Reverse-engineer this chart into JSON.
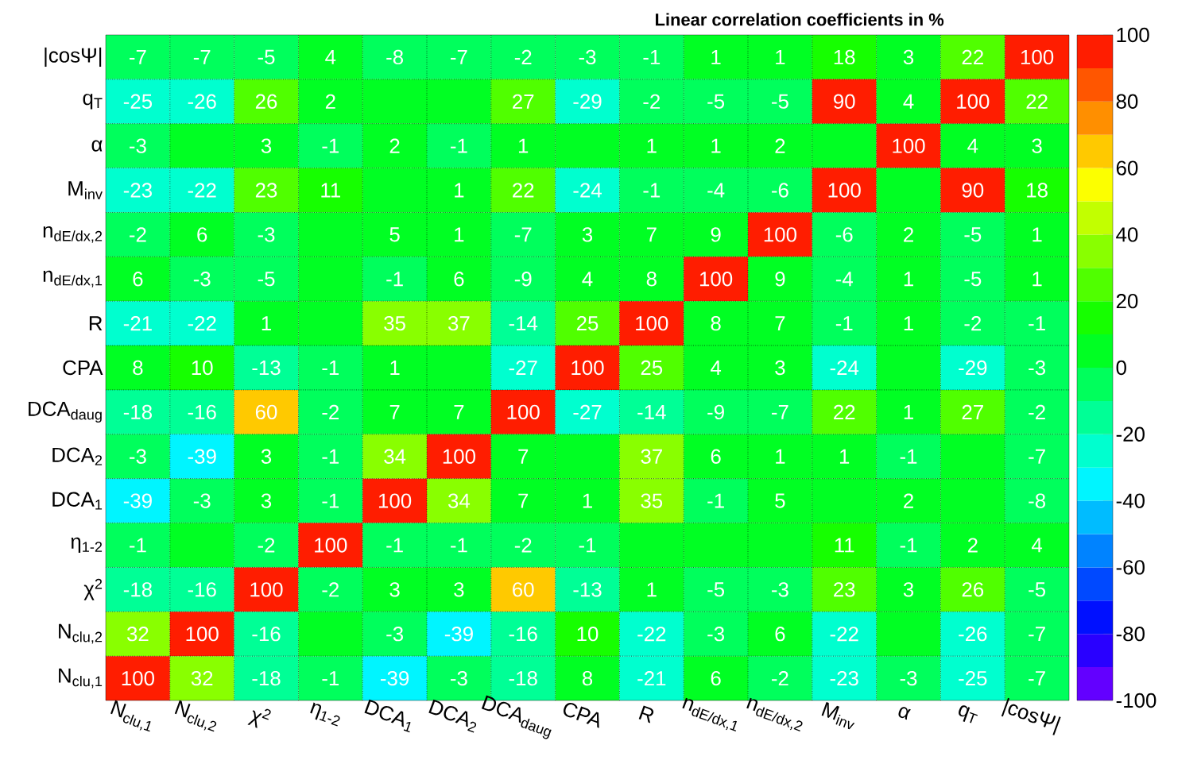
{
  "chart_data": {
    "type": "heatmap",
    "title": "Linear correlation coefficients in %",
    "categories": [
      "N$_{clu,1}$",
      "N$_{clu,2}$",
      "χ$^{2}$",
      "η$_{1-2}$",
      "DCA$_{1}$",
      "DCA$_{2}$",
      "DCA$_{daug}$",
      "CPA",
      "R",
      "n$_{dE/dx,1}$",
      "n$_{dE/dx,2}$",
      "M$_{inv}$",
      "α",
      "q$_{T}$",
      "|cosΨ|"
    ],
    "y_categories": [
      "|cosΨ|",
      "q$_{T}$",
      "α",
      "M$_{inv}$",
      "n$_{dE/dx,2}$",
      "n$_{dE/dx,1}$",
      "R",
      "CPA",
      "DCA$_{daug}$",
      "DCA$_{2}$",
      "DCA$_{1}$",
      "η$_{1-2}$",
      "χ$^{2}$",
      "N$_{clu,2}$",
      "N$_{clu,1}$"
    ],
    "cells": [
      [
        -7,
        -7,
        -5,
        4,
        -8,
        -7,
        -2,
        -3,
        -1,
        1,
        1,
        18,
        3,
        22,
        100
      ],
      [
        -25,
        -26,
        26,
        2,
        0,
        0,
        27,
        -29,
        -2,
        -5,
        -5,
        90,
        4,
        100,
        22
      ],
      [
        -3,
        0,
        3,
        -1,
        2,
        -1,
        1,
        0,
        1,
        1,
        2,
        0,
        100,
        4,
        3
      ],
      [
        -23,
        -22,
        23,
        11,
        0,
        1,
        22,
        -24,
        -1,
        -4,
        -6,
        100,
        0,
        90,
        18
      ],
      [
        -2,
        6,
        -3,
        0,
        5,
        1,
        -7,
        3,
        7,
        9,
        100,
        -6,
        2,
        -5,
        1
      ],
      [
        6,
        -3,
        -5,
        0,
        -1,
        6,
        -9,
        4,
        8,
        100,
        9,
        -4,
        1,
        -5,
        1
      ],
      [
        -21,
        -22,
        1,
        0,
        35,
        37,
        -14,
        25,
        100,
        8,
        7,
        -1,
        1,
        -2,
        -1
      ],
      [
        8,
        10,
        -13,
        -1,
        1,
        0,
        -27,
        100,
        25,
        4,
        3,
        -24,
        0,
        -29,
        -3
      ],
      [
        -18,
        -16,
        60,
        -2,
        7,
        7,
        100,
        -27,
        -14,
        -9,
        -7,
        22,
        1,
        27,
        -2
      ],
      [
        -3,
        -39,
        3,
        -1,
        34,
        100,
        7,
        0,
        37,
        6,
        1,
        1,
        -1,
        0,
        -7
      ],
      [
        -39,
        -3,
        3,
        -1,
        100,
        34,
        7,
        1,
        35,
        -1,
        5,
        0,
        2,
        0,
        -8
      ],
      [
        -1,
        0,
        -2,
        100,
        -1,
        -1,
        -2,
        -1,
        0,
        0,
        0,
        11,
        -1,
        2,
        4
      ],
      [
        -18,
        -16,
        100,
        -2,
        3,
        3,
        60,
        -13,
        1,
        -5,
        -3,
        23,
        3,
        26,
        -5
      ],
      [
        32,
        100,
        -16,
        0,
        -3,
        -39,
        -16,
        10,
        -22,
        -3,
        6,
        -22,
        0,
        -26,
        -7
      ],
      [
        100,
        32,
        -18,
        -1,
        -39,
        -3,
        -18,
        8,
        -21,
        6,
        -2,
        -23,
        -3,
        -25,
        -7
      ]
    ],
    "cell_labels": [
      [
        "-7",
        "-7",
        "-5",
        "4",
        "-8",
        "-7",
        "-2",
        "-3",
        "-1",
        "1",
        "1",
        "18",
        "3",
        "22",
        "100"
      ],
      [
        "-25",
        "-26",
        "26",
        "2",
        null,
        null,
        "27",
        "-29",
        "-2",
        "-5",
        "-5",
        "90",
        "4",
        "100",
        "22"
      ],
      [
        "-3",
        null,
        "3",
        "-1",
        "2",
        "-1",
        "1",
        null,
        "1",
        "1",
        "2",
        null,
        "100",
        "4",
        "3"
      ],
      [
        "-23",
        "-22",
        "23",
        "11",
        null,
        "1",
        "22",
        "-24",
        "-1",
        "-4",
        "-6",
        "100",
        null,
        "90",
        "18"
      ],
      [
        "-2",
        "6",
        "-3",
        null,
        "5",
        "1",
        "-7",
        "3",
        "7",
        "9",
        "100",
        "-6",
        "2",
        "-5",
        "1"
      ],
      [
        "6",
        "-3",
        "-5",
        null,
        "-1",
        "6",
        "-9",
        "4",
        "8",
        "100",
        "9",
        "-4",
        "1",
        "-5",
        "1"
      ],
      [
        "-21",
        "-22",
        "1",
        null,
        "35",
        "37",
        "-14",
        "25",
        "100",
        "8",
        "7",
        "-1",
        "1",
        "-2",
        "-1"
      ],
      [
        "8",
        "10",
        "-13",
        "-1",
        "1",
        null,
        "-27",
        "100",
        "25",
        "4",
        "3",
        "-24",
        null,
        "-29",
        "-3"
      ],
      [
        "-18",
        "-16",
        "60",
        "-2",
        "7",
        "7",
        "100",
        "-27",
        "-14",
        "-9",
        "-7",
        "22",
        "1",
        "27",
        "-2"
      ],
      [
        "-3",
        "-39",
        "3",
        "-1",
        "34",
        "100",
        "7",
        null,
        "37",
        "6",
        "1",
        "1",
        "-1",
        null,
        "-7"
      ],
      [
        "-39",
        "-3",
        "3",
        "-1",
        "100",
        "34",
        "7",
        "1",
        "35",
        "-1",
        "5",
        null,
        "2",
        null,
        "-8"
      ],
      [
        "-1",
        null,
        "-2",
        "100",
        "-1",
        "-1",
        "-2",
        "-1",
        null,
        null,
        null,
        "11",
        "-1",
        "2",
        "4"
      ],
      [
        "-18",
        "-16",
        "100",
        "-2",
        "3",
        "3",
        "60",
        "-13",
        "1",
        "-5",
        "-3",
        "23",
        "3",
        "26",
        "-5"
      ],
      [
        "32",
        "100",
        "-16",
        null,
        "-3",
        "-39",
        "-16",
        "10",
        "-22",
        "-3",
        "6",
        "-22",
        null,
        "-26",
        "-7"
      ],
      [
        "100",
        "32",
        "-18",
        "-1",
        "-39",
        "-3",
        "-18",
        "8",
        "-21",
        "6",
        "-2",
        "-23",
        "-3",
        "-25",
        "-7"
      ]
    ],
    "clim": [
      -100,
      100
    ],
    "cticks": [
      -100,
      -80,
      -60,
      -40,
      -20,
      0,
      20,
      40,
      60,
      80,
      100
    ],
    "grid": true
  }
}
